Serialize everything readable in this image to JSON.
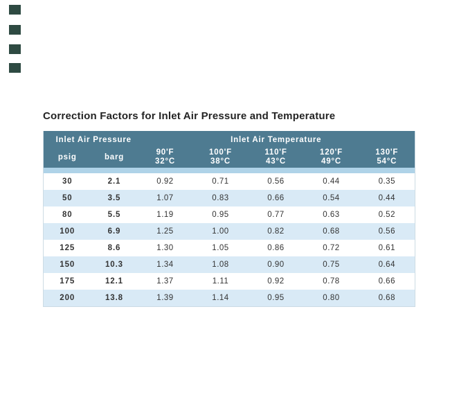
{
  "decor": {
    "corner_square_color": "#2e4a42",
    "corner_square_count": 4
  },
  "title": "Correction Factors for Inlet Air Pressure and Temperature",
  "colors": {
    "header_bg": "#4e7b91",
    "header_text": "#ffffff",
    "divider_strip": "#afd3e8",
    "stripe_row": "#d9eaf6",
    "white_row": "#ffffff",
    "body_text": "#333333",
    "table_border": "#ccdbe4"
  },
  "table": {
    "group_headers": {
      "pressure": "Inlet Air Pressure",
      "temperature": "Inlet Air Temperature"
    },
    "pressure_cols": [
      "psig",
      "barg"
    ],
    "temp_cols": [
      {
        "f": "90'F",
        "c": "32°C"
      },
      {
        "f": "100'F",
        "c": "38°C"
      },
      {
        "f": "110'F",
        "c": "43°C"
      },
      {
        "f": "120'F",
        "c": "49°C"
      },
      {
        "f": "130'F",
        "c": "54°C"
      }
    ],
    "rows": [
      [
        "30",
        "2.1",
        "0.92",
        "0.71",
        "0.56",
        "0.44",
        "0.35"
      ],
      [
        "50",
        "3.5",
        "1.07",
        "0.83",
        "0.66",
        "0.54",
        "0.44"
      ],
      [
        "80",
        "5.5",
        "1.19",
        "0.95",
        "0.77",
        "0.63",
        "0.52"
      ],
      [
        "100",
        "6.9",
        "1.25",
        "1.00",
        "0.82",
        "0.68",
        "0.56"
      ],
      [
        "125",
        "8.6",
        "1.30",
        "1.05",
        "0.86",
        "0.72",
        "0.61"
      ],
      [
        "150",
        "10.3",
        "1.34",
        "1.08",
        "0.90",
        "0.75",
        "0.64"
      ],
      [
        "175",
        "12.1",
        "1.37",
        "1.11",
        "0.92",
        "0.78",
        "0.66"
      ],
      [
        "200",
        "13.8",
        "1.39",
        "1.14",
        "0.95",
        "0.80",
        "0.68"
      ]
    ]
  }
}
